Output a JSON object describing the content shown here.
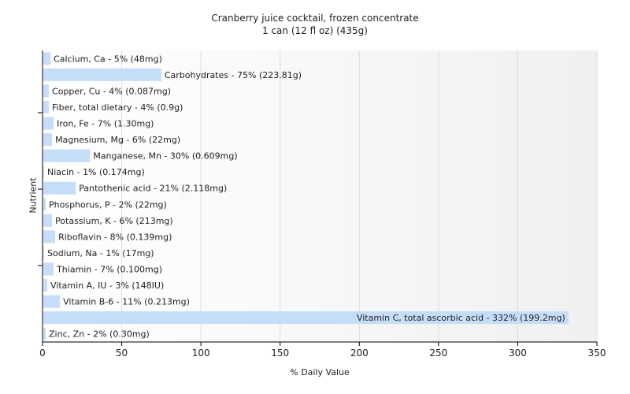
{
  "chart_data": {
    "type": "bar",
    "orientation": "horizontal",
    "title": "Cranberry juice cocktail, frozen concentrate",
    "subtitle": "1 can (12 fl oz) (435g)",
    "xlabel": "% Daily Value",
    "ylabel": "Nutrient",
    "xlim": [
      0,
      350
    ],
    "xticks": [
      0,
      50,
      100,
      150,
      200,
      250,
      300,
      350
    ],
    "grid": true,
    "bar_color": "#c6ddfa",
    "categories": [
      "Calcium, Ca",
      "Carbohydrates",
      "Copper, Cu",
      "Fiber, total dietary",
      "Iron, Fe",
      "Magnesium, Mg",
      "Manganese, Mn",
      "Niacin",
      "Pantothenic acid",
      "Phosphorus, P",
      "Potassium, K",
      "Riboflavin",
      "Sodium, Na",
      "Thiamin",
      "Vitamin A, IU",
      "Vitamin B-6",
      "Vitamin C, total ascorbic acid",
      "Zinc, Zn"
    ],
    "values": [
      5,
      75,
      4,
      4,
      7,
      6,
      30,
      1,
      21,
      2,
      6,
      8,
      1,
      7,
      3,
      11,
      332,
      2
    ],
    "labels": [
      "Calcium, Ca - 5% (48mg)",
      "Carbohydrates - 75% (223.81g)",
      "Copper, Cu - 4% (0.087mg)",
      "Fiber, total dietary - 4% (0.9g)",
      "Iron, Fe - 7% (1.30mg)",
      "Magnesium, Mg - 6% (22mg)",
      "Manganese, Mn - 30% (0.609mg)",
      "Niacin - 1% (0.174mg)",
      "Pantothenic acid - 21% (2.118mg)",
      "Phosphorus, P - 2% (22mg)",
      "Potassium, K - 6% (213mg)",
      "Riboflavin - 8% (0.139mg)",
      "Sodium, Na - 1% (17mg)",
      "Thiamin - 7% (0.100mg)",
      "Vitamin A, IU - 3% (148IU)",
      "Vitamin B-6 - 11% (0.213mg)",
      "Vitamin C, total ascorbic acid - 332% (199.2mg)",
      "Zinc, Zn - 2% (0.30mg)"
    ]
  }
}
